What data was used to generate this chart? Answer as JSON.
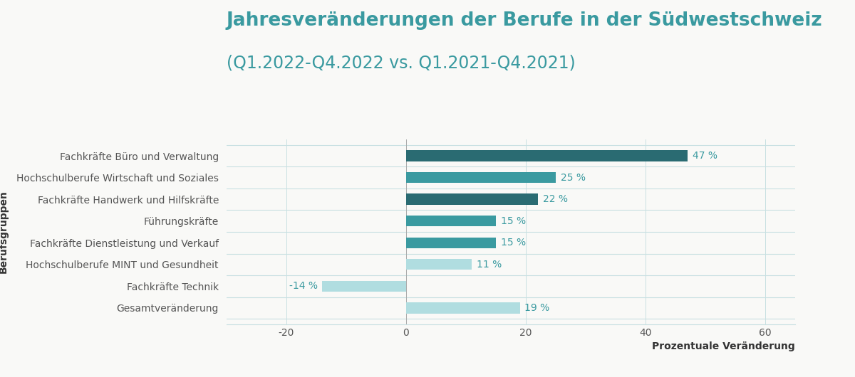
{
  "title_line1": "Jahresveränderungen der Berufe in der Südwestschweiz",
  "title_line2": "(Q1.2022-Q4.2022 vs. Q1.2021-Q4.2021)",
  "categories": [
    "Fachkräfte Büro und Verwaltung",
    "Hochschulberufe Wirtschaft und Soziales",
    "Fachkräfte Handwerk und Hilfskräfte",
    "Führungskräfte",
    "Fachkräfte Dienstleistung und Verkauf",
    "Hochschulberufe MINT und Gesundheit",
    "Fachkräfte Technik",
    "Gesamtveränderung"
  ],
  "values": [
    47,
    25,
    22,
    15,
    15,
    11,
    -14,
    19
  ],
  "bar_colors": [
    "#2a6b72",
    "#3a9aa0",
    "#2a6b72",
    "#3a9aa0",
    "#3a9aa0",
    "#b0dde0",
    "#b0dde0",
    "#b0dde0"
  ],
  "label_color": "#3a9aa0",
  "title_color": "#3a9aa0",
  "ylabel": "Berufsgruppen",
  "xlabel": "Prozentuale Veränderung",
  "xlim": [
    -30,
    65
  ],
  "xticks": [
    -20,
    0,
    20,
    40,
    60
  ],
  "background_color": "#f9f9f7",
  "grid_color": "#c8e0e2",
  "separator_color": "#c8e0e2",
  "bar_height": 0.5,
  "title_fontsize1": 19,
  "title_fontsize2": 17,
  "label_fontsize": 10,
  "tick_fontsize": 10,
  "ylabel_fontsize": 10,
  "xlabel_fontsize": 10
}
